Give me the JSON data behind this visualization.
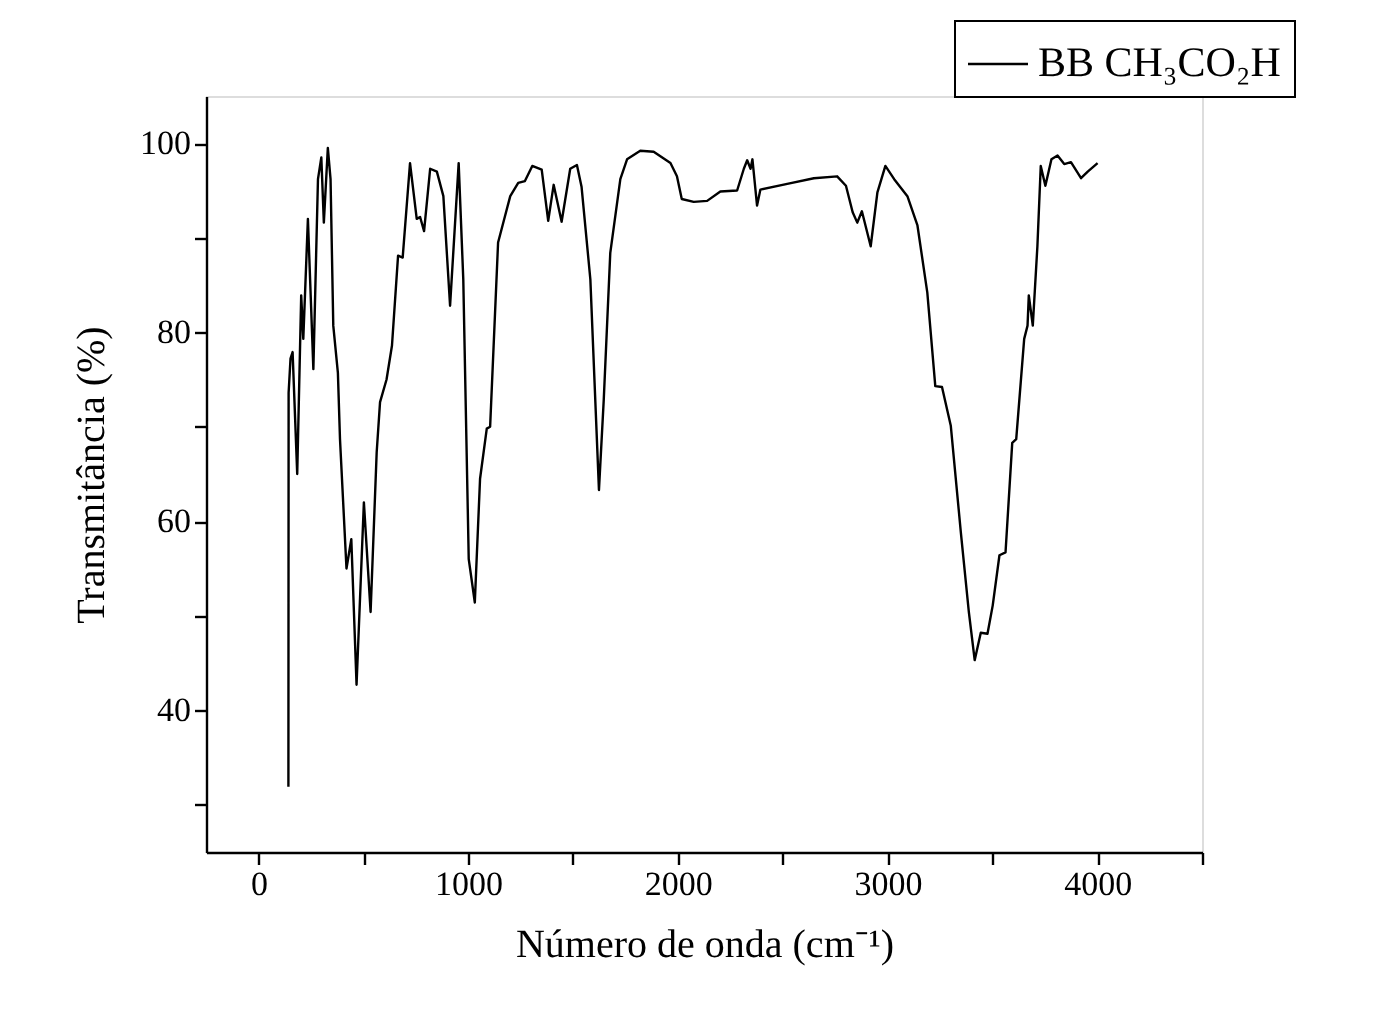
{
  "chart_data": {
    "type": "line",
    "xlabel": "Número de onda (cm⁻¹)",
    "ylabel": "Transmitância (%)",
    "legend": "top right",
    "grid": false,
    "marker": "none",
    "line_style": "solid",
    "xlim": [
      -250,
      4500
    ],
    "ylim": [
      25,
      105
    ],
    "xticks": [
      0,
      {
        "value": 500,
        "label": null
      },
      1000,
      {
        "value": 1500,
        "label": null
      },
      2000,
      {
        "value": 2500,
        "label": null
      },
      3000,
      {
        "value": 3500,
        "label": null
      },
      4000,
      {
        "value": 4500,
        "label": null
      }
    ],
    "yticks": [
      {
        "value": 30,
        "label": null
      },
      40,
      {
        "value": 50,
        "label": null
      },
      60,
      {
        "value": 70,
        "label": null
      },
      80,
      {
        "value": 90,
        "label": null
      },
      100
    ],
    "series": [
      {
        "name": "BB CH₃CO₂H",
        "color": "#000000",
        "x": [
          143,
          144,
          153,
          163,
          185,
          204,
          214,
          236,
          262,
          284,
          300,
          312,
          331,
          344,
          357,
          379,
          389,
          420,
          443,
          468,
          503,
          535,
          564,
          580,
          611,
          637,
          666,
          688,
          723,
          755,
          771,
          790,
          819,
          851,
          882,
          914,
          955,
          977,
          1003,
          1032,
          1057,
          1089,
          1105,
          1143,
          1201,
          1239,
          1271,
          1306,
          1351,
          1382,
          1408,
          1446,
          1487,
          1519,
          1541,
          1583,
          1624,
          1647,
          1678,
          1726,
          1758,
          1821,
          1885,
          1965,
          1996,
          2019,
          2076,
          2140,
          2203,
          2283,
          2315,
          2331,
          2347,
          2356,
          2378,
          2394,
          2522,
          2649,
          2760,
          2802,
          2834,
          2856,
          2878,
          2920,
          2952,
          2990,
          3032,
          3095,
          3143,
          3190,
          3228,
          3260,
          3302,
          3350,
          3388,
          3416,
          3445,
          3477,
          3502,
          3534,
          3563,
          3595,
          3614,
          3652,
          3668,
          3674,
          3693,
          3715,
          3731,
          3753,
          3782,
          3811,
          3843,
          3875,
          3923,
          3955,
          4002
        ],
        "values": [
          31.9,
          73.6,
          77.2,
          77.9,
          65.0,
          83.9,
          79.3,
          92.0,
          76.1,
          96.2,
          98.5,
          91.6,
          99.5,
          96.2,
          80.7,
          75.7,
          68.7,
          55.0,
          58.1,
          42.7,
          62.0,
          50.4,
          67.3,
          72.6,
          75.0,
          78.6,
          88.1,
          87.9,
          97.9,
          92.0,
          92.2,
          90.7,
          97.3,
          97.0,
          94.4,
          82.8,
          97.9,
          85.6,
          56.0,
          51.4,
          64.5,
          69.8,
          70.0,
          89.5,
          94.4,
          95.8,
          96.0,
          97.6,
          97.2,
          91.8,
          95.6,
          91.7,
          97.3,
          97.7,
          95.4,
          85.6,
          63.3,
          72.9,
          88.4,
          96.2,
          98.3,
          99.2,
          99.1,
          97.9,
          96.5,
          94.1,
          93.8,
          93.9,
          94.9,
          95.0,
          97.3,
          98.2,
          97.3,
          98.3,
          93.4,
          95.1,
          95.7,
          96.3,
          96.5,
          95.5,
          92.7,
          91.6,
          92.8,
          89.1,
          94.8,
          97.6,
          96.2,
          94.4,
          91.3,
          84.2,
          74.3,
          74.2,
          70.1,
          58.8,
          50.4,
          45.3,
          48.2,
          48.1,
          51.1,
          56.4,
          56.7,
          68.3,
          68.7,
          79.3,
          80.7,
          83.9,
          80.7,
          89.1,
          97.6,
          95.5,
          98.3,
          98.7,
          97.8,
          98.0,
          96.3,
          97.0,
          97.9
        ]
      }
    ]
  }
}
